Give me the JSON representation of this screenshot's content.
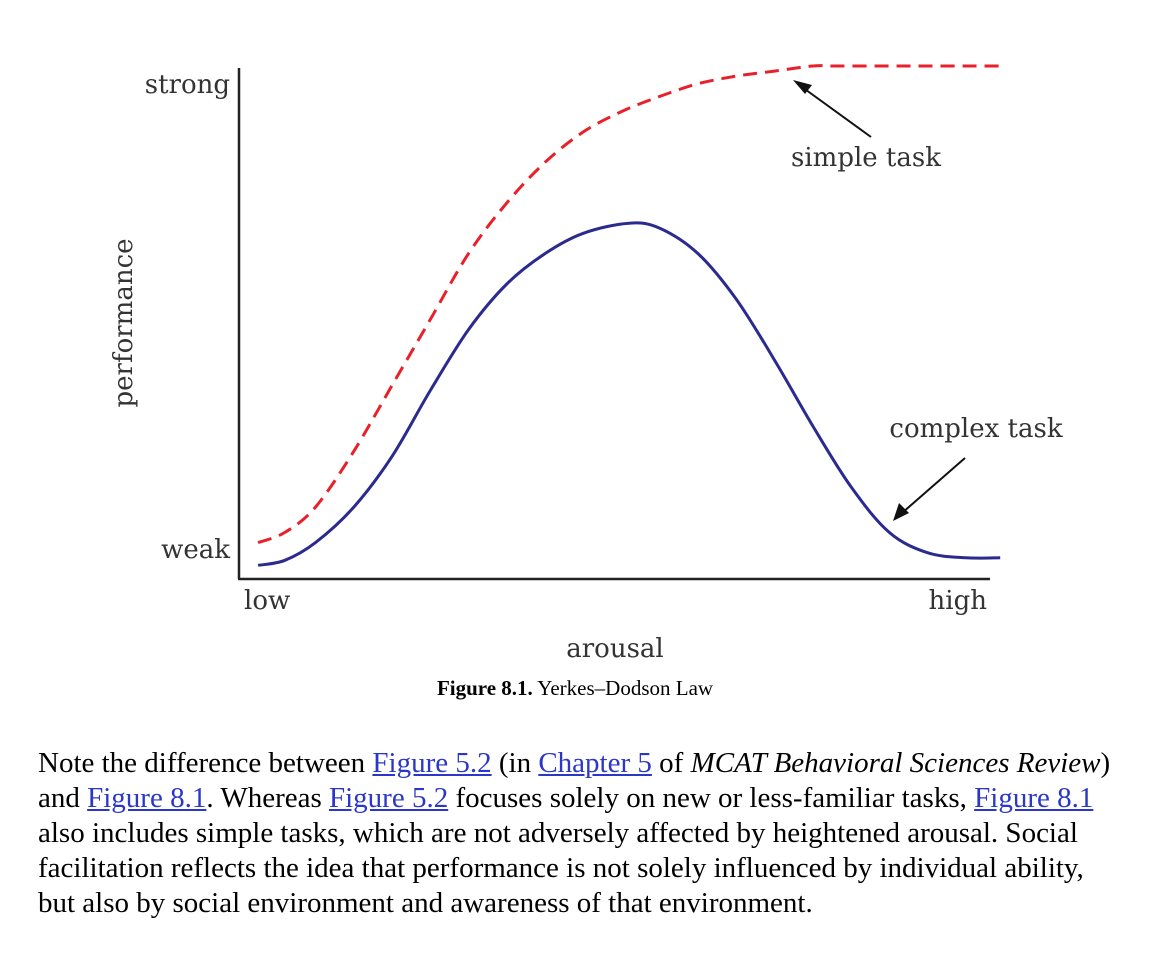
{
  "chart_data": {
    "type": "line",
    "title": "",
    "xlabel": "arousal",
    "ylabel": "performance",
    "x_ticks": [
      "low",
      "high"
    ],
    "y_ticks": [
      "weak",
      "strong"
    ],
    "xlim": [
      0,
      1
    ],
    "ylim": [
      0,
      1
    ],
    "series": [
      {
        "name": "simple task",
        "style": "dashed",
        "color": "#e8202a",
        "x": [
          0.025,
          0.06,
          0.1,
          0.15,
          0.2,
          0.25,
          0.3,
          0.35,
          0.4,
          0.45,
          0.5,
          0.55,
          0.6,
          0.65,
          0.7,
          0.75,
          0.78,
          0.85,
          0.9,
          0.95,
          0.995
        ],
        "y": [
          0.06,
          0.08,
          0.13,
          0.24,
          0.37,
          0.5,
          0.63,
          0.73,
          0.81,
          0.87,
          0.91,
          0.94,
          0.965,
          0.98,
          0.99,
          1.0,
          1.0,
          1.0,
          1.0,
          1.0,
          1.0
        ]
      },
      {
        "name": "complex task",
        "style": "solid",
        "color": "#2b2a8e",
        "x": [
          0.025,
          0.06,
          0.1,
          0.15,
          0.2,
          0.25,
          0.3,
          0.35,
          0.4,
          0.45,
          0.51,
          0.55,
          0.6,
          0.65,
          0.7,
          0.75,
          0.8,
          0.85,
          0.9,
          0.95,
          0.995
        ],
        "y": [
          0.015,
          0.025,
          0.06,
          0.13,
          0.23,
          0.36,
          0.48,
          0.57,
          0.63,
          0.67,
          0.69,
          0.68,
          0.63,
          0.54,
          0.42,
          0.29,
          0.17,
          0.08,
          0.04,
          0.03,
          0.03
        ]
      }
    ],
    "annotations": [
      "simple task",
      "complex task"
    ],
    "legend": "none",
    "grid": false
  },
  "caption": {
    "label": "Figure 8.1.",
    "text": "Yerkes–Dodson Law"
  },
  "paragraph": {
    "t1": "Note the difference between ",
    "link1": "Figure 5.2",
    "t2": " (in ",
    "link2": "Chapter 5",
    "t3": " of ",
    "italic1": "MCAT Behavioral Sciences Review",
    "t4": ") and ",
    "link3": "Figure 8.1",
    "t5": ". Whereas ",
    "link4": "Figure 5.2",
    "t6": " focuses solely on new or less-familiar tasks, ",
    "link5": "Figure 8.1",
    "t7": " also includes simple tasks, which are not adversely affected by heightened arousal. Social facilitation reflects the idea that performance is not solely influenced by individual ability, but also by social environment and awareness of that environment."
  }
}
